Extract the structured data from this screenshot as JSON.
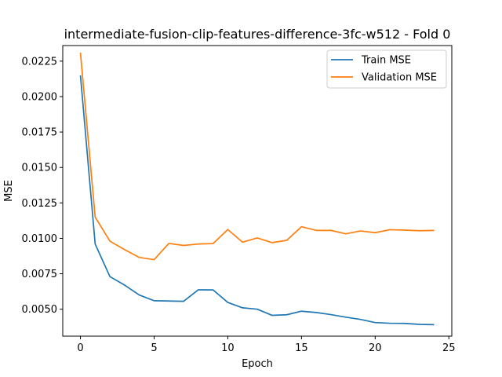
{
  "chart_data": {
    "type": "line",
    "title": "intermediate-fusion-clip-features-difference-3fc-w512 - Fold 0",
    "xlabel": "Epoch",
    "ylabel": "MSE",
    "xlim": [
      -1.2,
      25.2
    ],
    "ylim": [
      0.0031,
      0.0236
    ],
    "xticks": [
      0,
      5,
      10,
      15,
      20,
      25
    ],
    "yticks": [
      0.005,
      0.0075,
      0.01,
      0.0125,
      0.015,
      0.0175,
      0.02,
      0.0225
    ],
    "ytick_labels": [
      "0.0050",
      "0.0075",
      "0.0100",
      "0.0125",
      "0.0150",
      "0.0175",
      "0.0200",
      "0.0225"
    ],
    "xtick_labels": [
      "0",
      "5",
      "10",
      "15",
      "20",
      "25"
    ],
    "legend_position": "top-right",
    "grid": false,
    "x": [
      0,
      1,
      2,
      3,
      4,
      5,
      6,
      7,
      8,
      9,
      10,
      11,
      12,
      13,
      14,
      15,
      16,
      17,
      18,
      19,
      20,
      21,
      22,
      23,
      24
    ],
    "series": [
      {
        "name": "Train MSE",
        "color": "#1f77b4",
        "values": [
          0.0215,
          0.0096,
          0.0073,
          0.0067,
          0.006,
          0.0056,
          0.00558,
          0.00556,
          0.00637,
          0.00636,
          0.00548,
          0.0051,
          0.005,
          0.00457,
          0.00461,
          0.00486,
          0.00477,
          0.00462,
          0.00444,
          0.00428,
          0.00406,
          0.00401,
          0.004,
          0.00393,
          0.00391
        ]
      },
      {
        "name": "Validation MSE",
        "color": "#ff7f0e",
        "values": [
          0.0231,
          0.0115,
          0.0098,
          0.0092,
          0.00865,
          0.0085,
          0.00964,
          0.0095,
          0.0096,
          0.00963,
          0.01062,
          0.00973,
          0.01003,
          0.0097,
          0.00986,
          0.01082,
          0.01056,
          0.01056,
          0.01032,
          0.01052,
          0.0104,
          0.01061,
          0.01058,
          0.01054,
          0.01056
        ]
      }
    ]
  }
}
